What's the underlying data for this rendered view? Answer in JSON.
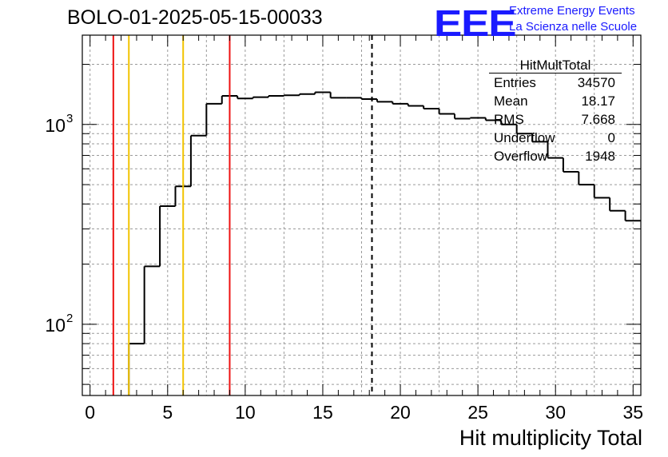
{
  "page_title": "BOLO-01-2025-05-15-00033",
  "logo": {
    "text": "EEE",
    "line1": "Extreme Energy Events",
    "line2": "La Scienza nelle Scuole",
    "color": "#1a1aff"
  },
  "stats_box": {
    "title": "HitMultTotal",
    "rows": [
      {
        "label": "Entries",
        "value": "34570"
      },
      {
        "label": "Mean",
        "value": "18.17"
      },
      {
        "label": "RMS",
        "value": "7.668"
      },
      {
        "label": "Underflow",
        "value": "0"
      },
      {
        "label": "Overflow",
        "value": "1948"
      }
    ]
  },
  "chart_data": {
    "type": "histogram",
    "title": "BOLO-01-2025-05-15-00033",
    "xlabel": "Hit multiplicity Total",
    "ylabel": "",
    "xlim": [
      -0.5,
      35.5
    ],
    "ylim": [
      44,
      2800
    ],
    "yscale": "log",
    "grid": true,
    "bin_width": 1,
    "bin_edges_start": -0.5,
    "values": [
      0,
      0,
      0,
      80,
      195,
      390,
      490,
      880,
      1270,
      1390,
      1350,
      1370,
      1390,
      1400,
      1420,
      1450,
      1360,
      1360,
      1340,
      1300,
      1270,
      1240,
      1200,
      1130,
      1070,
      1080,
      1050,
      1000,
      900,
      820,
      680,
      580,
      500,
      430,
      370,
      330
    ],
    "xticks": [
      0,
      5,
      10,
      15,
      20,
      25,
      30,
      35
    ],
    "ytick_labels": [
      {
        "value": 100,
        "label": "10",
        "exp": "2"
      },
      {
        "value": 1000,
        "label": "10",
        "exp": "3"
      }
    ],
    "vlines": [
      {
        "x": 1.5,
        "color": "#ee1111",
        "style": "solid"
      },
      {
        "x": 2.5,
        "color": "#f2c300",
        "style": "solid"
      },
      {
        "x": 6.0,
        "color": "#f2c300",
        "style": "solid"
      },
      {
        "x": 9.0,
        "color": "#ee1111",
        "style": "solid"
      },
      {
        "x": 18.17,
        "color": "#000000",
        "style": "dashed"
      }
    ]
  }
}
